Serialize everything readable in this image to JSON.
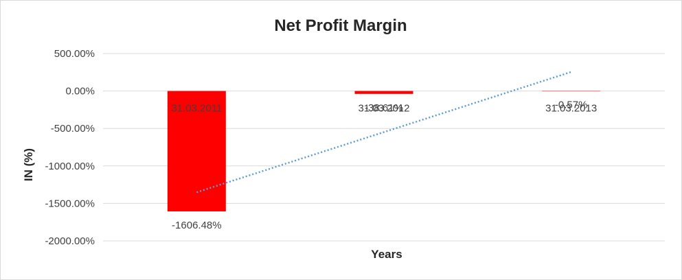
{
  "chart_data": {
    "type": "bar",
    "title": "Net Profit Margin",
    "xlabel": "Years",
    "ylabel": "IN (%)",
    "categories": [
      "31.03.2011",
      "31.03.2012",
      "31.03.2013"
    ],
    "values": [
      -1606.48,
      -38.61,
      -0.57
    ],
    "data_labels": [
      "-1606.48%",
      "-38.61%",
      "-0.57%"
    ],
    "ylim": [
      -2000,
      500
    ],
    "yticks": [
      500,
      0,
      -500,
      -1000,
      -1500,
      -2000
    ],
    "ytick_labels": [
      "500.00%",
      "0.00%",
      "-500.00%",
      "-1000.00%",
      "-1500.00%",
      "-2000.00%"
    ],
    "bar_color": "#ff0000",
    "trendline": {
      "type": "linear",
      "style": "dotted",
      "color": "#5b9bd5"
    },
    "grid": true,
    "legend": "none"
  }
}
